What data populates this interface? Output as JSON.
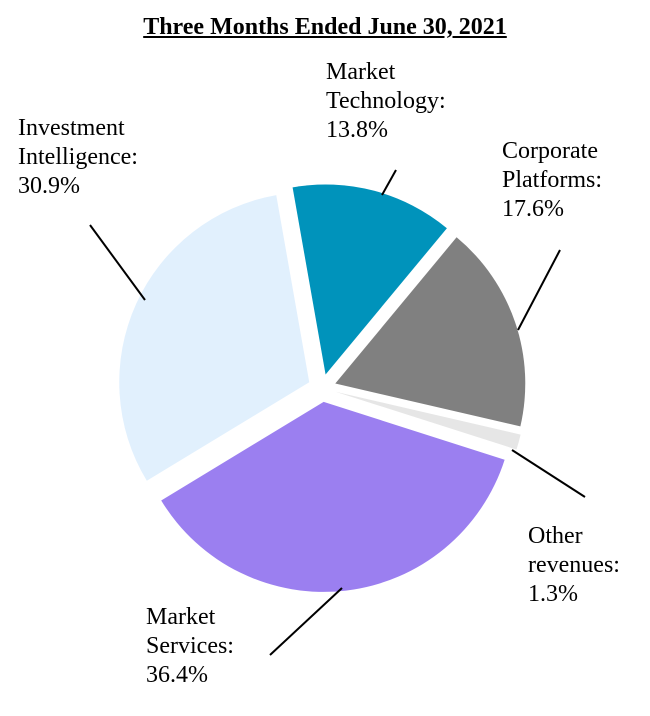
{
  "chart_data": {
    "type": "pie",
    "title": "Three Months Ended June 30, 2021",
    "slices": [
      {
        "name": "Market Technology",
        "value": 13.8,
        "label": "Market\nTechnology:\n13.8%",
        "color": "#0093bb"
      },
      {
        "name": "Corporate Platforms",
        "value": 17.6,
        "label": "Corporate\nPlatforms:\n17.6%",
        "color": "#808080"
      },
      {
        "name": "Other revenues",
        "value": 1.3,
        "label": "Other\nrevenues:\n1.3%",
        "color": "#e6e6e6"
      },
      {
        "name": "Market Services",
        "value": 36.4,
        "label": "Market\nServices:\n36.4%",
        "color": "#9b7ff0"
      },
      {
        "name": "Investment Intelligence",
        "value": 30.9,
        "label": "Investment\nIntelligence:\n30.9%",
        "color": "#e1f0fd"
      }
    ],
    "exploded": true,
    "legend": "none"
  }
}
